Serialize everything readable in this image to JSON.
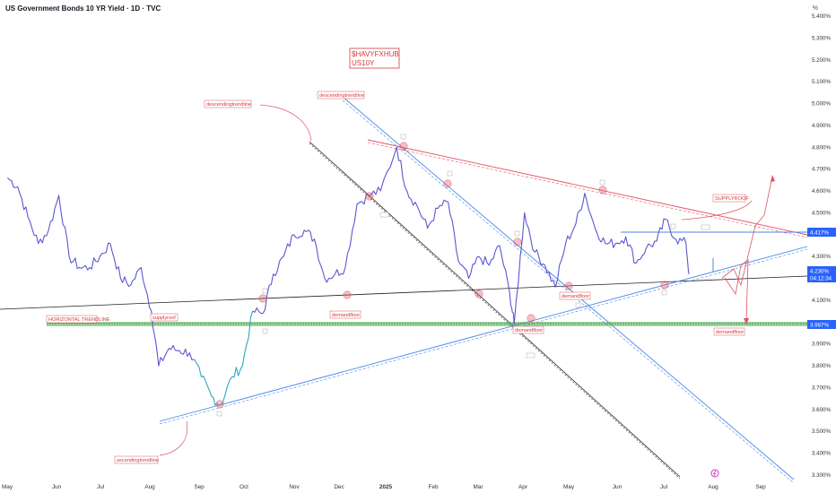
{
  "header": {
    "title": "US Government Bonds 10 YR Yield · 1D · TVC",
    "unit": "%"
  },
  "watermark": {
    "line1": "$HAVYFXHUB",
    "line2": "US10Y"
  },
  "price_tags": {
    "upper": "4.417%",
    "current": "4.230%",
    "countdown": "04:12:34",
    "lower": "3.987%"
  },
  "labels": {
    "descending_1": "descendingtrendline",
    "descending_2": "descendingtrendline",
    "horizontal": "HORIZONTAL TRENDLINE",
    "supplyroof_left": "supplyroof",
    "supplyroof_right": "SUPPLYROOF",
    "demand_1": "demandfloor",
    "demand_2": "demandfloor",
    "demand_3": "demandfloor",
    "demand_4": "demandfloor",
    "ascending": "ascendingtrendline"
  },
  "chart_data": {
    "type": "line",
    "title": "US Government Bonds 10 YR Yield · 1D · TVC",
    "xlabel": "",
    "ylabel": "",
    "y_unit": "%",
    "ylim": [
      3.3,
      5.4
    ],
    "x_ticks": [
      "May",
      "Jun",
      "Jul",
      "Aug",
      "Sep",
      "Oct",
      "Nov",
      "Dec",
      "2025",
      "Feb",
      "Mar",
      "Apr",
      "May",
      "Jun",
      "Jul",
      "Aug",
      "Sep"
    ],
    "y_ticks": [
      "5.400%",
      "5.300%",
      "5.200%",
      "5.100%",
      "5.000%",
      "4.900%",
      "4.800%",
      "4.700%",
      "4.600%",
      "4.500%",
      "4.400%",
      "4.300%",
      "4.200%",
      "4.100%",
      "4.000%",
      "3.900%",
      "3.800%",
      "3.700%",
      "3.600%",
      "3.500%",
      "3.400%",
      "3.300%"
    ],
    "series": [
      {
        "name": "US10Y",
        "x": [
          "2024-04-24",
          "2024-05-01",
          "2024-05-08",
          "2024-05-15",
          "2024-05-22",
          "2024-05-29",
          "2024-06-05",
          "2024-06-12",
          "2024-06-19",
          "2024-06-26",
          "2024-07-03",
          "2024-07-10",
          "2024-07-17",
          "2024-07-24",
          "2024-07-31",
          "2024-08-05",
          "2024-08-12",
          "2024-08-19",
          "2024-08-26",
          "2024-09-03",
          "2024-09-10",
          "2024-09-16",
          "2024-09-24",
          "2024-10-01",
          "2024-10-08",
          "2024-10-15",
          "2024-10-22",
          "2024-10-29",
          "2024-11-05",
          "2024-11-12",
          "2024-11-19",
          "2024-11-26",
          "2024-12-03",
          "2024-12-10",
          "2024-12-18",
          "2024-12-26",
          "2025-01-03",
          "2025-01-14",
          "2025-01-21",
          "2025-01-28",
          "2025-02-04",
          "2025-02-11",
          "2025-02-18",
          "2025-02-25",
          "2025-03-04",
          "2025-03-11",
          "2025-03-18",
          "2025-03-25",
          "2025-04-01",
          "2025-04-04",
          "2025-04-11",
          "2025-04-18",
          "2025-04-25",
          "2025-05-02",
          "2025-05-09",
          "2025-05-16",
          "2025-05-22",
          "2025-05-29",
          "2025-06-05",
          "2025-06-12",
          "2025-06-19",
          "2025-06-26",
          "2025-07-03",
          "2025-07-10",
          "2025-07-16",
          "2025-07-23",
          "2025-07-30",
          "2025-08-01"
        ],
        "values": [
          4.66,
          4.62,
          4.48,
          4.36,
          4.42,
          4.58,
          4.3,
          4.25,
          4.25,
          4.3,
          4.36,
          4.2,
          4.17,
          4.25,
          4.05,
          3.8,
          3.88,
          3.87,
          3.86,
          3.75,
          3.66,
          3.62,
          3.75,
          3.8,
          4.05,
          4.04,
          4.22,
          4.3,
          4.4,
          4.42,
          4.38,
          4.2,
          4.22,
          4.25,
          4.54,
          4.58,
          4.6,
          4.8,
          4.6,
          4.53,
          4.43,
          4.52,
          4.55,
          4.28,
          4.2,
          4.3,
          4.26,
          4.35,
          4.13,
          3.99,
          4.5,
          4.32,
          4.26,
          4.16,
          4.36,
          4.45,
          4.59,
          4.43,
          4.36,
          4.36,
          4.39,
          4.27,
          4.34,
          4.37,
          4.47,
          4.38,
          4.36,
          4.22
        ]
      }
    ],
    "annotations": [
      "$HAVYFXHUB",
      "US10Y",
      "descendingtrendline",
      "descendingtrendline",
      "HORIZONTAL TRENDLINE",
      "supplyroof",
      "SUPPLYROOF",
      "demandfloor",
      "demandfloor",
      "demandfloor",
      "demandfloor",
      "ascendingtrendline"
    ],
    "price_labels": [
      "4.417%",
      "4.230%",
      "04:12:34",
      "3.987%"
    ],
    "grid": false,
    "legend": "none",
    "colors": {
      "line": "#5b57d1",
      "dip": "#2aa7c4",
      "supply": "#e05263",
      "trend_blue": "#4a86e8",
      "trend_black": "#222222",
      "horizontal_green": "#4caf50"
    }
  }
}
